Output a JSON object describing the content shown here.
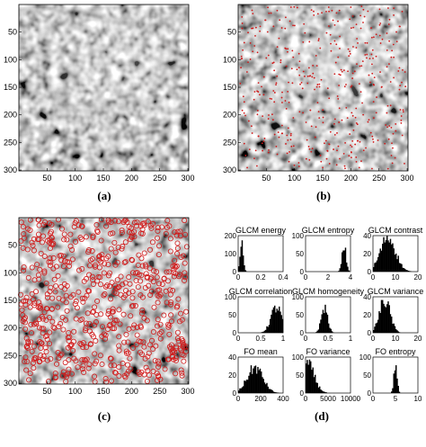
{
  "figure": {
    "panels": [
      {
        "id": "a",
        "label": "(a)",
        "kind": "grayscale-texture",
        "markers": "none",
        "xticks": [
          "50",
          "100",
          "150",
          "200",
          "250",
          "300"
        ],
        "yticks": [
          "50",
          "100",
          "150",
          "200",
          "250",
          "300"
        ]
      },
      {
        "id": "b",
        "label": "(b)",
        "kind": "grayscale-texture",
        "markers": "sparse-red",
        "xticks": [
          "50",
          "100",
          "150",
          "200",
          "250",
          "300"
        ],
        "yticks": [
          "50",
          "100",
          "150",
          "200",
          "250",
          "300"
        ]
      },
      {
        "id": "c",
        "label": "(c)",
        "kind": "grayscale-texture",
        "markers": "dense-red-circles",
        "xticks": [
          "50",
          "100",
          "150",
          "200",
          "250",
          "300"
        ],
        "yticks": [
          "50",
          "100",
          "150",
          "200",
          "250",
          "300"
        ]
      },
      {
        "id": "d",
        "label": "(d)",
        "kind": "histogram-grid"
      }
    ],
    "marker_color": "#d01818"
  },
  "chart_data": [
    {
      "type": "bar",
      "title": "GLCM energy",
      "xticks": [
        "0",
        "0.2",
        "0.4"
      ],
      "yticks": [
        "0",
        "100",
        "200"
      ],
      "xlim": [
        0,
        0.4
      ],
      "ylim": [
        0,
        200
      ],
      "shape": {
        "peak": 0.03,
        "spread": 0.015,
        "peakValue": 150
      }
    },
    {
      "type": "bar",
      "title": "GLCM entropy",
      "xticks": [
        "0",
        "2",
        "4"
      ],
      "yticks": [
        "0",
        "50",
        "100"
      ],
      "xlim": [
        0,
        4.5
      ],
      "ylim": [
        0,
        100
      ],
      "shape": {
        "peak": 3.85,
        "spread": 0.2,
        "peakValue": 70
      }
    },
    {
      "type": "bar",
      "title": "GLCM contrast",
      "xticks": [
        "0",
        "10",
        "20"
      ],
      "yticks": [
        "0",
        "20",
        "40"
      ],
      "xlim": [
        0,
        21
      ],
      "ylim": [
        0,
        40
      ],
      "shape": {
        "peak": 7,
        "spread": 3.5,
        "peakValue": 38
      }
    },
    {
      "type": "bar",
      "title": "GLCM correlation",
      "xticks": [
        "0",
        "0.5",
        "1"
      ],
      "yticks": [
        "0",
        "50",
        "100"
      ],
      "xlim": [
        0,
        1
      ],
      "ylim": [
        0,
        100
      ],
      "shape": {
        "peak": 0.85,
        "spread": 0.12,
        "peakValue": 70
      }
    },
    {
      "type": "bar",
      "title": "GLCM homogeneity",
      "xticks": [
        "0",
        "0.5",
        "1"
      ],
      "yticks": [
        "0",
        "50",
        "100"
      ],
      "xlim": [
        0,
        1
      ],
      "ylim": [
        0,
        100
      ],
      "shape": {
        "peak": 0.42,
        "spread": 0.07,
        "peakValue": 70
      }
    },
    {
      "type": "bar",
      "title": "GLCM variance",
      "xticks": [
        "0",
        "10",
        "20"
      ],
      "yticks": [
        "0",
        "20",
        "40"
      ],
      "xlim": [
        0,
        21
      ],
      "ylim": [
        0,
        40
      ],
      "shape": {
        "peak": 5.5,
        "spread": 2.5,
        "peakValue": 36
      }
    },
    {
      "type": "bar",
      "title": "FO mean",
      "xticks": [
        "0",
        "200",
        "400"
      ],
      "yticks": [
        "0",
        "20",
        "40"
      ],
      "xlim": [
        0,
        400
      ],
      "ylim": [
        0,
        40
      ],
      "shape": {
        "peak": 150,
        "spread": 70,
        "peakValue": 28
      }
    },
    {
      "type": "bar",
      "title": "FO variance",
      "xticks": [
        "0",
        "5000",
        "10000"
      ],
      "yticks": [
        "0",
        "50",
        "100"
      ],
      "xlim": [
        0,
        10000
      ],
      "ylim": [
        0,
        100
      ],
      "shape": {
        "peak": 400,
        "spread": 1500,
        "peakValue": 80
      }
    },
    {
      "type": "bar",
      "title": "FO entropy",
      "xticks": [
        "0",
        "5",
        "10"
      ],
      "yticks": [
        "0",
        "50",
        "100"
      ],
      "xlim": [
        0,
        10
      ],
      "ylim": [
        0,
        100
      ],
      "shape": {
        "peak": 5,
        "spread": 0.35,
        "peakValue": 80
      }
    }
  ]
}
